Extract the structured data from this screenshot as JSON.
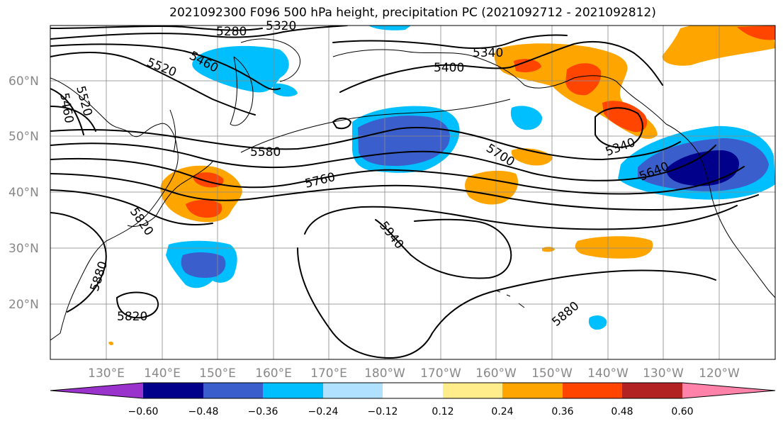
{
  "title": "2021092300 F096 500 hPa height, precipitation PC (2021092712 - 2021092812)",
  "lat_labels": [
    "60°N",
    "50°N",
    "40°N",
    "30°N",
    "20°N"
  ],
  "lon_labels": [
    "130°E",
    "140°E",
    "150°E",
    "160°E",
    "170°E",
    "180°W",
    "170°W",
    "160°W",
    "150°W",
    "140°W",
    "130°W",
    "120°W"
  ],
  "contour_labels": [
    "5280",
    "5320",
    "5340",
    "5400",
    "5460",
    "5520",
    "5460",
    "5520",
    "5580",
    "5760",
    "5700",
    "5340",
    "5640",
    "5820",
    "5940",
    "5880",
    "5880",
    "5820"
  ],
  "colorbar": {
    "ticks": [
      "−0.60",
      "−0.48",
      "−0.36",
      "−0.24",
      "−0.12",
      "0.12",
      "0.24",
      "0.36",
      "0.48",
      "0.60"
    ],
    "colors": [
      "#9933cc",
      "#00008b",
      "#3a5fcd",
      "#00bfff",
      "#b0e2ff",
      "#ffffff",
      "#ffec8b",
      "#ffa500",
      "#ff4500",
      "#b22222",
      "#ff82ab"
    ]
  },
  "shading_colors": {
    "neg_light": "#00bfff",
    "neg_medium": "#3a5fcd",
    "neg_dark": "#00008b",
    "pos_light": "#ffa500",
    "pos_medium": "#ff4500"
  }
}
